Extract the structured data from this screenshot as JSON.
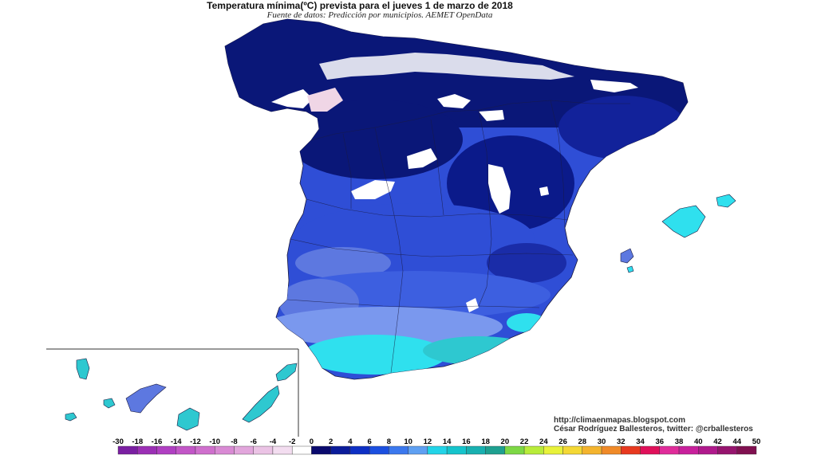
{
  "header": {
    "title": "Temperatura mínima(ºC) prevista para el jueves 1 de marzo de 2018",
    "subtitle": "Fuente de datos: Predicción por municipios. AEMET OpenData"
  },
  "credits": {
    "url": "http://climaenmapas.blogspot.com",
    "author": "César Rodríguez Ballesteros, twitter: @crballesteros"
  },
  "legend": {
    "labels": [
      "-30",
      "-18",
      "-16",
      "-14",
      "-12",
      "-10",
      "-8",
      "-6",
      "-4",
      "-2",
      "0",
      "2",
      "4",
      "6",
      "8",
      "10",
      "12",
      "14",
      "16",
      "18",
      "20",
      "22",
      "24",
      "26",
      "28",
      "30",
      "32",
      "34",
      "36",
      "38",
      "40",
      "42",
      "44",
      "50"
    ],
    "colors": [
      "#7a1fa2",
      "#9b2fb5",
      "#b03fc2",
      "#c256c7",
      "#cf6fcd",
      "#d98ad4",
      "#e2a6dc",
      "#ebc3e5",
      "#f3ddf0",
      "#ffffff",
      "#0a0a6e",
      "#0b1c9a",
      "#0d2fc4",
      "#1b4fe0",
      "#3b78ee",
      "#5fa0f2",
      "#22d4e8",
      "#15c4cc",
      "#18b0b0",
      "#1ea090",
      "#7dd845",
      "#b8ec3a",
      "#e8f23a",
      "#f4d835",
      "#f4b42e",
      "#f08a28",
      "#e8391f",
      "#e0105a",
      "#e02c9a",
      "#c8209c",
      "#b0198c",
      "#96146e",
      "#801050"
    ],
    "unit": "ºC"
  },
  "map": {
    "region": "Spain (peninsula, Balearic and Canary Islands)",
    "colors": {
      "deep": "#0a1778",
      "dark": "#1a2ca8",
      "mid": "#2f4ed6",
      "light": "#5d78e0",
      "pale": "#8ea8ec",
      "cyan": "#2fe0ee",
      "teal": "#2ec8d0",
      "snow": "#ffffff",
      "pink": "#f0d6e6"
    }
  }
}
